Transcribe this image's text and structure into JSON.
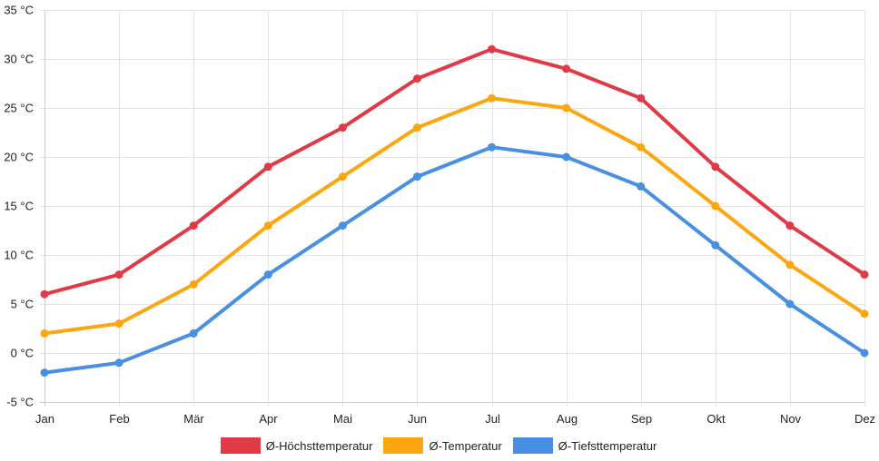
{
  "chart_data": {
    "type": "line",
    "title": "",
    "xlabel": "",
    "ylabel": "",
    "categories": [
      "Jan",
      "Feb",
      "Mär",
      "Apr",
      "Mai",
      "Jun",
      "Jul",
      "Aug",
      "Sep",
      "Okt",
      "Nov",
      "Dez"
    ],
    "ylim": [
      -5,
      35
    ],
    "y_ticks": [
      35,
      30,
      25,
      20,
      15,
      10,
      5,
      0,
      -5
    ],
    "y_tick_labels": [
      "35 °C",
      "30 °C",
      "25 °C",
      "20 °C",
      "15 °C",
      "10 °C",
      "5 °C",
      "0 °C",
      "-5 °C"
    ],
    "grid": true,
    "legend_position": "bottom",
    "series": [
      {
        "name": "Ø-Höchsttemperatur",
        "color": "#e03a47",
        "values": [
          6,
          8,
          13,
          19,
          23,
          28,
          31,
          29,
          26,
          19,
          13,
          8
        ]
      },
      {
        "name": "Ø-Temperatur",
        "color": "#fca610",
        "values": [
          2,
          3,
          7,
          13,
          18,
          23,
          26,
          25,
          21,
          15,
          9,
          4
        ]
      },
      {
        "name": "Ø-Tiefsttemperatur",
        "color": "#4a90e2",
        "values": [
          -2,
          -1,
          2,
          8,
          13,
          18,
          21,
          20,
          17,
          11,
          5,
          0
        ]
      }
    ]
  }
}
